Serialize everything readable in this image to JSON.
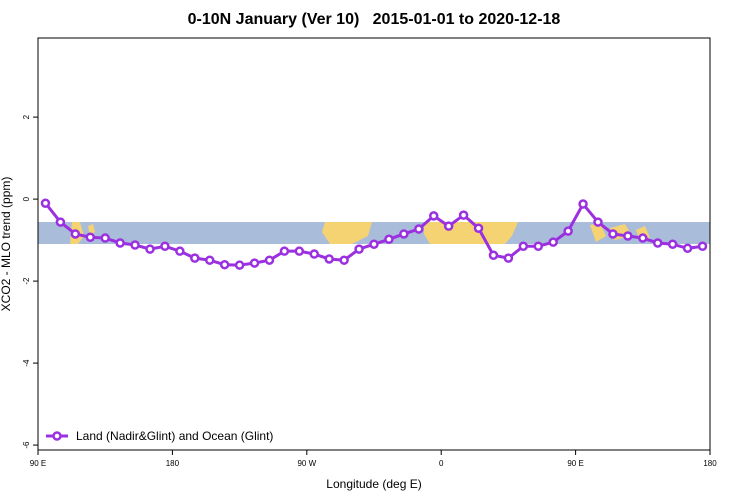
{
  "chart_data": {
    "type": "line",
    "title": "0-10N January (Ver 10)   2015-01-01 to 2020-12-18",
    "x_label": "Longitude (deg E)",
    "y_label": "XCO2 - MLO trend (ppm)",
    "x": [
      95,
      105,
      115,
      125,
      135,
      145,
      155,
      165,
      175,
      185,
      195,
      205,
      215,
      225,
      235,
      245,
      255,
      265,
      275,
      285,
      295,
      305,
      315,
      325,
      335,
      345,
      355,
      365,
      375,
      385,
      395,
      405,
      415,
      425,
      435,
      445,
      455,
      465,
      475,
      485,
      495,
      505,
      515,
      525,
      535
    ],
    "series": [
      {
        "name": "Land (Nadir&Glint) and Ocean (Glint)",
        "color": "#9b30e0",
        "values": [
          -0.1,
          -0.56,
          -0.85,
          -0.93,
          -0.95,
          -1.07,
          -1.12,
          -1.22,
          -1.15,
          -1.27,
          -1.44,
          -1.49,
          -1.6,
          -1.61,
          -1.56,
          -1.49,
          -1.27,
          -1.27,
          -1.34,
          -1.46,
          -1.49,
          -1.22,
          -1.1,
          -0.98,
          -0.85,
          -0.73,
          -0.41,
          -0.66,
          -0.39,
          -0.71,
          -1.37,
          -1.44,
          -1.15,
          -1.15,
          -1.05,
          -0.78,
          -0.12,
          -0.56,
          -0.85,
          -0.9,
          -0.95,
          -1.07,
          -1.1,
          -1.2,
          -1.15
        ]
      }
    ],
    "xlim": [
      90,
      540
    ],
    "xticks": [
      {
        "value": 90,
        "label": "90 E"
      },
      {
        "value": 180,
        "label": "180"
      },
      {
        "value": 270,
        "label": "90 W"
      },
      {
        "value": 360,
        "label": "0"
      },
      {
        "value": 450,
        "label": "90 E"
      },
      {
        "value": 540,
        "label": "180"
      }
    ],
    "ylim": [
      -6.12,
      3.93
    ],
    "yticks": [
      2,
      0,
      -2,
      -4,
      -6
    ],
    "legend": "bottomleft"
  }
}
